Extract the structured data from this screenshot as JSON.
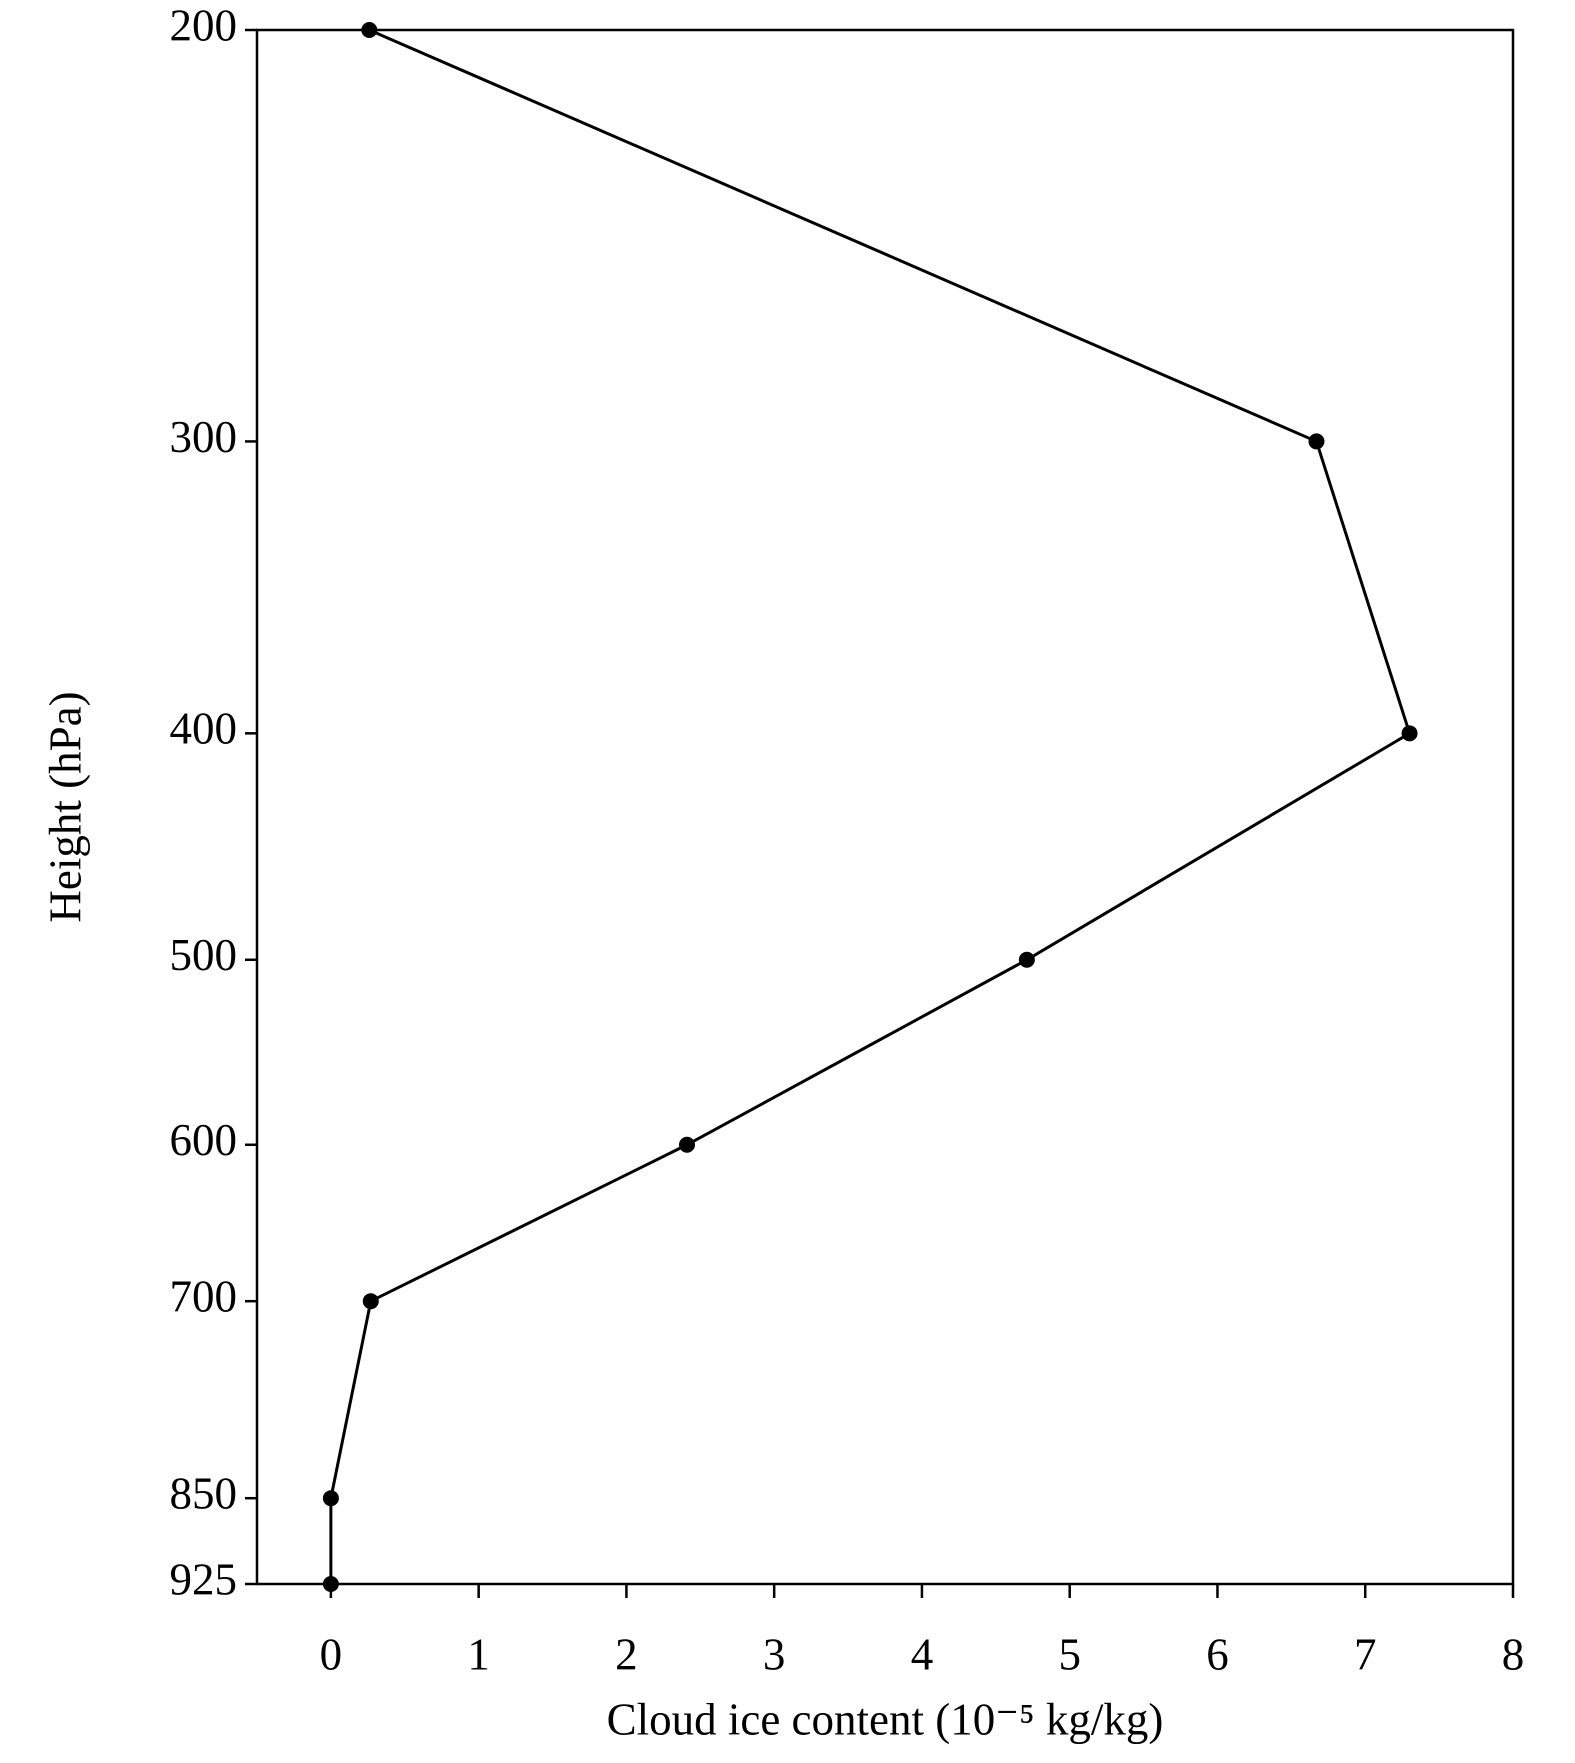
{
  "chart_data": {
    "type": "line",
    "xlabel": "Cloud ice content (10⁻⁵ kg/kg)",
    "ylabel": "Height (hPa)",
    "x": [
      0.26,
      6.67,
      7.3,
      4.71,
      2.41,
      0.27,
      0,
      0
    ],
    "y": [
      200,
      300,
      400,
      500,
      600,
      700,
      850,
      925
    ],
    "color": "#000000",
    "xlim": [
      -0.5,
      8
    ],
    "xticks": [
      0,
      1,
      2,
      3,
      4,
      5,
      6,
      7,
      8
    ],
    "ylim": [
      925,
      200
    ],
    "yticks": [
      200,
      300,
      400,
      500,
      600,
      700,
      850,
      925
    ],
    "yscale": "log",
    "grid": false
  }
}
